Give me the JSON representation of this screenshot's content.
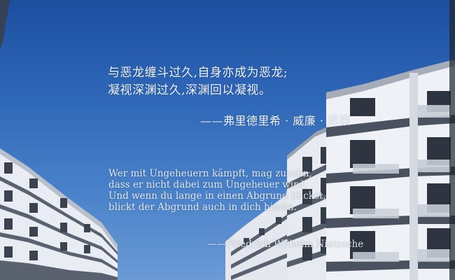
{
  "quote_chinese": {
    "lines": [
      "与恶龙缠斗过久,自身亦成为恶龙;",
      "凝视深渊过久,深渊回以凝视。"
    ],
    "author": "——弗里德里希 · 威廉 · 尼采"
  },
  "quote_german": {
    "lines": [
      "Wer mit Ungeheuern kämpft, mag zusehn,",
      "dass er nicht dabei zum Ungeheuer wird.",
      "Und wenn du lange in einen Abgrund blickst,",
      "blickt der Abgrund auch in dich hinein."
    ],
    "author": "——Friedrich Wilhelm Nietzsche"
  },
  "colors": {
    "sky_top": "#1d4f9f",
    "sky_bottom": "#6b9ad5",
    "text": "#eef3fb",
    "building_wall": "#e8ecf2",
    "building_band": "#4a5260"
  }
}
